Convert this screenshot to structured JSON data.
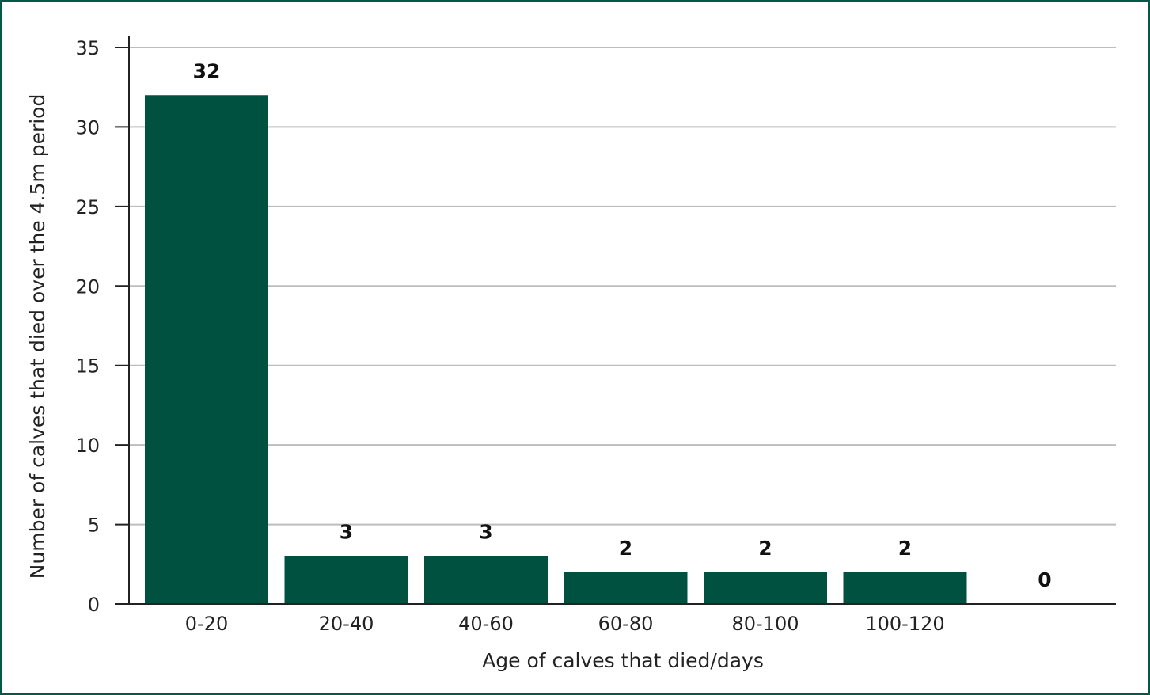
{
  "chart_data": {
    "type": "bar",
    "categories": [
      "0-20",
      "20-40",
      "40-60",
      "60-80",
      "80-100",
      "100-120",
      ""
    ],
    "values": [
      32,
      3,
      3,
      2,
      2,
      2,
      0
    ],
    "data_labels": [
      "32",
      "3",
      "3",
      "2",
      "2",
      "2",
      "0"
    ],
    "xlabel": "Age of calves that died/days",
    "ylabel": "Number of calves that died over the 4.5m period",
    "ylim": [
      0,
      35
    ],
    "yticks": [
      0,
      5,
      10,
      15,
      20,
      25,
      30,
      35
    ],
    "grid": true,
    "legend": "none",
    "bar_color": "#00513f",
    "frame_color": "#005a46"
  }
}
